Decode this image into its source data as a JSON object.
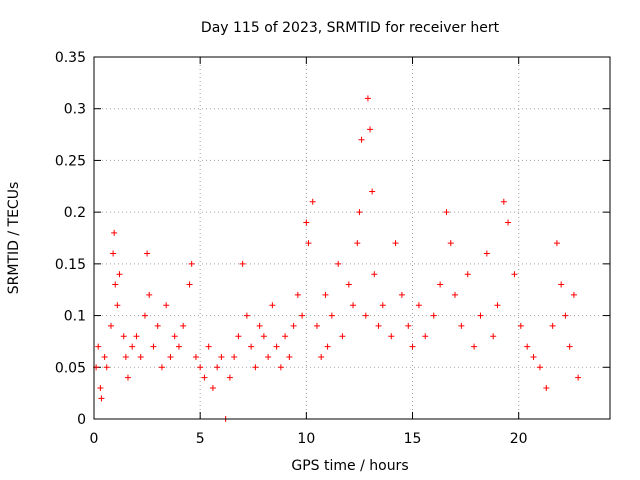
{
  "chart_data": {
    "type": "scatter",
    "title": "Day 115 of 2023, SRMTID for receiver hert",
    "xlabel": "GPS time / hours",
    "ylabel": "SRMTID / TECUs",
    "xlim": [
      0,
      24.3
    ],
    "ylim": [
      0,
      0.35
    ],
    "xticks": [
      0,
      5,
      10,
      15,
      20
    ],
    "xtick_labels": [
      "0",
      "5",
      "10",
      "15",
      "20"
    ],
    "yticks": [
      0,
      0.05,
      0.1,
      0.15,
      0.2,
      0.25,
      0.3,
      0.35
    ],
    "ytick_labels": [
      "0",
      "0.05",
      "0.1",
      "0.15",
      "0.2",
      "0.25",
      "0.3",
      "0.35"
    ],
    "grid": true,
    "marker": "+",
    "color": "#ff0000",
    "series": [
      {
        "name": "SRMTID",
        "points": [
          [
            0.1,
            0.05
          ],
          [
            0.2,
            0.07
          ],
          [
            0.3,
            0.03
          ],
          [
            0.35,
            0.02
          ],
          [
            0.5,
            0.06
          ],
          [
            0.6,
            0.05
          ],
          [
            0.8,
            0.09
          ],
          [
            0.9,
            0.16
          ],
          [
            0.95,
            0.18
          ],
          [
            1.0,
            0.13
          ],
          [
            1.1,
            0.11
          ],
          [
            1.2,
            0.14
          ],
          [
            1.4,
            0.08
          ],
          [
            1.5,
            0.06
          ],
          [
            1.6,
            0.04
          ],
          [
            1.8,
            0.07
          ],
          [
            2.0,
            0.08
          ],
          [
            2.2,
            0.06
          ],
          [
            2.4,
            0.1
          ],
          [
            2.5,
            0.16
          ],
          [
            2.6,
            0.12
          ],
          [
            2.8,
            0.07
          ],
          [
            3.0,
            0.09
          ],
          [
            3.2,
            0.05
          ],
          [
            3.4,
            0.11
          ],
          [
            3.6,
            0.06
          ],
          [
            3.8,
            0.08
          ],
          [
            4.0,
            0.07
          ],
          [
            4.2,
            0.09
          ],
          [
            4.5,
            0.13
          ],
          [
            4.6,
            0.15
          ],
          [
            4.8,
            0.06
          ],
          [
            5.0,
            0.05
          ],
          [
            5.2,
            0.04
          ],
          [
            5.4,
            0.07
          ],
          [
            5.6,
            0.03
          ],
          [
            5.8,
            0.05
          ],
          [
            6.0,
            0.06
          ],
          [
            6.2,
            0.0
          ],
          [
            6.4,
            0.04
          ],
          [
            6.6,
            0.06
          ],
          [
            6.8,
            0.08
          ],
          [
            7.0,
            0.15
          ],
          [
            7.2,
            0.1
          ],
          [
            7.4,
            0.07
          ],
          [
            7.6,
            0.05
          ],
          [
            7.8,
            0.09
          ],
          [
            8.0,
            0.08
          ],
          [
            8.2,
            0.06
          ],
          [
            8.4,
            0.11
          ],
          [
            8.6,
            0.07
          ],
          [
            8.8,
            0.05
          ],
          [
            9.0,
            0.08
          ],
          [
            9.2,
            0.06
          ],
          [
            9.4,
            0.09
          ],
          [
            9.6,
            0.12
          ],
          [
            9.8,
            0.1
          ],
          [
            10.0,
            0.19
          ],
          [
            10.1,
            0.17
          ],
          [
            10.3,
            0.21
          ],
          [
            10.5,
            0.09
          ],
          [
            10.7,
            0.06
          ],
          [
            10.9,
            0.12
          ],
          [
            11.0,
            0.07
          ],
          [
            11.2,
            0.1
          ],
          [
            11.5,
            0.15
          ],
          [
            11.7,
            0.08
          ],
          [
            12.0,
            0.13
          ],
          [
            12.2,
            0.11
          ],
          [
            12.4,
            0.17
          ],
          [
            12.5,
            0.2
          ],
          [
            12.6,
            0.27
          ],
          [
            12.8,
            0.1
          ],
          [
            12.9,
            0.31
          ],
          [
            13.0,
            0.28
          ],
          [
            13.1,
            0.22
          ],
          [
            13.2,
            0.14
          ],
          [
            13.4,
            0.09
          ],
          [
            13.6,
            0.11
          ],
          [
            14.0,
            0.08
          ],
          [
            14.2,
            0.17
          ],
          [
            14.5,
            0.12
          ],
          [
            14.8,
            0.09
          ],
          [
            15.0,
            0.07
          ],
          [
            15.3,
            0.11
          ],
          [
            15.6,
            0.08
          ],
          [
            16.0,
            0.1
          ],
          [
            16.3,
            0.13
          ],
          [
            16.6,
            0.2
          ],
          [
            16.8,
            0.17
          ],
          [
            17.0,
            0.12
          ],
          [
            17.3,
            0.09
          ],
          [
            17.6,
            0.14
          ],
          [
            17.9,
            0.07
          ],
          [
            18.2,
            0.1
          ],
          [
            18.5,
            0.16
          ],
          [
            18.8,
            0.08
          ],
          [
            19.0,
            0.11
          ],
          [
            19.3,
            0.21
          ],
          [
            19.5,
            0.19
          ],
          [
            19.8,
            0.14
          ],
          [
            20.1,
            0.09
          ],
          [
            20.4,
            0.07
          ],
          [
            20.7,
            0.06
          ],
          [
            21.0,
            0.05
          ],
          [
            21.3,
            0.03
          ],
          [
            21.6,
            0.09
          ],
          [
            21.8,
            0.17
          ],
          [
            22.0,
            0.13
          ],
          [
            22.2,
            0.1
          ],
          [
            22.4,
            0.07
          ],
          [
            22.6,
            0.12
          ],
          [
            22.8,
            0.04
          ]
        ]
      }
    ]
  }
}
